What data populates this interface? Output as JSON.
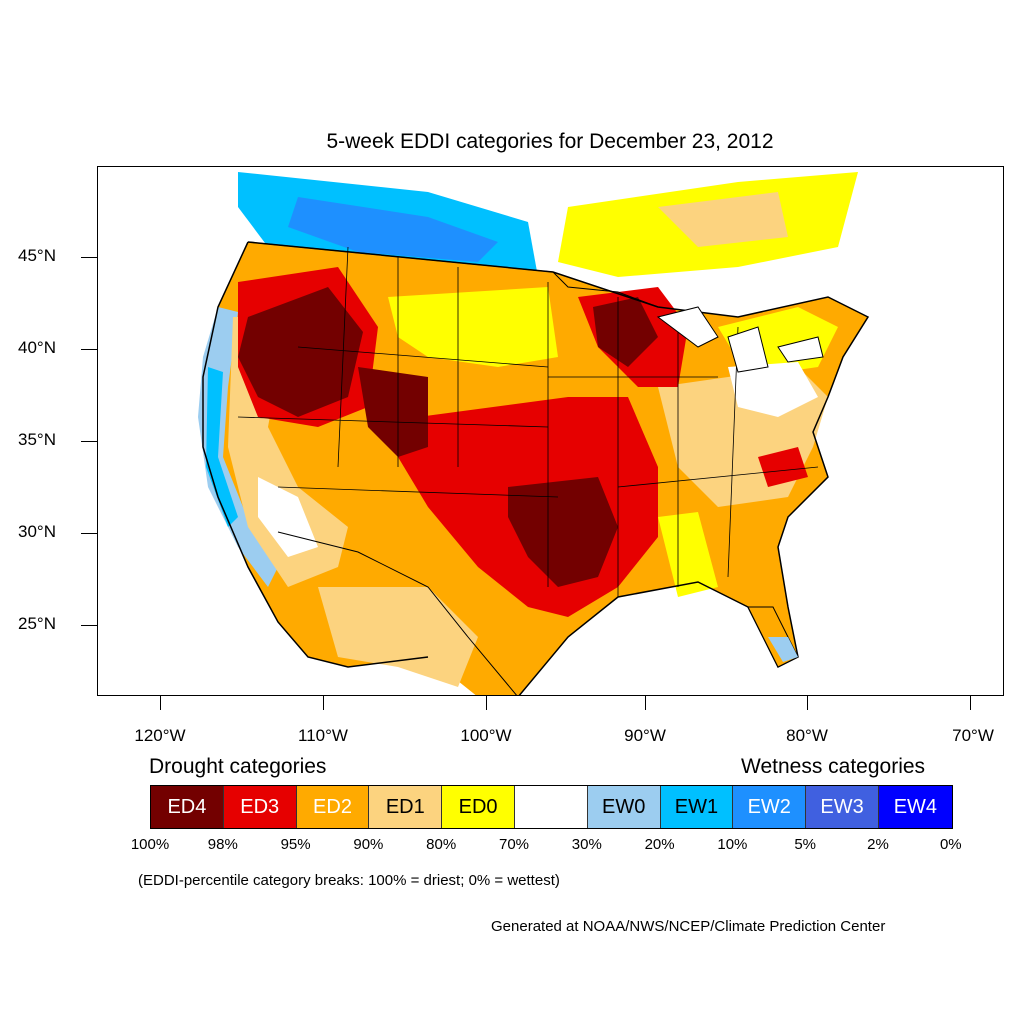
{
  "title": "5-week EDDI categories for December 23, 2012",
  "latitude_labels": [
    "45°N",
    "40°N",
    "35°N",
    "30°N",
    "25°N"
  ],
  "longitude_labels": [
    "120°W",
    "110°W",
    "100°W",
    "90°W",
    "80°W",
    "70°W"
  ],
  "legend": {
    "drought_heading": "Drought categories",
    "wetness_heading": "Wetness categories",
    "categories": [
      {
        "label": "ED4",
        "color": "#730000",
        "text_color": "#ffffff"
      },
      {
        "label": "ED3",
        "color": "#e60000",
        "text_color": "#ffffff"
      },
      {
        "label": "ED2",
        "color": "#ffaa00",
        "text_color": "#ffffff"
      },
      {
        "label": "ED1",
        "color": "#fcd37f",
        "text_color": "#000000"
      },
      {
        "label": "ED0",
        "color": "#ffff00",
        "text_color": "#000000"
      },
      {
        "label": "",
        "color": "#ffffff",
        "text_color": "#000000"
      },
      {
        "label": "EW0",
        "color": "#9ccdf0",
        "text_color": "#000000"
      },
      {
        "label": "EW1",
        "color": "#00c0ff",
        "text_color": "#000000"
      },
      {
        "label": "EW2",
        "color": "#1e90ff",
        "text_color": "#ffffff"
      },
      {
        "label": "EW3",
        "color": "#4060e0",
        "text_color": "#ffffff"
      },
      {
        "label": "EW4",
        "color": "#0000ff",
        "text_color": "#ffffff"
      }
    ],
    "percentiles": [
      "100%",
      "98%",
      "95%",
      "90%",
      "80%",
      "70%",
      "30%",
      "20%",
      "10%",
      "5%",
      "2%",
      "0%"
    ]
  },
  "note": "(EDDI-percentile category breaks: 100% = driest; 0% = wettest)",
  "credit": "Generated at NOAA/NWS/NCEP/Climate Prediction Center"
}
